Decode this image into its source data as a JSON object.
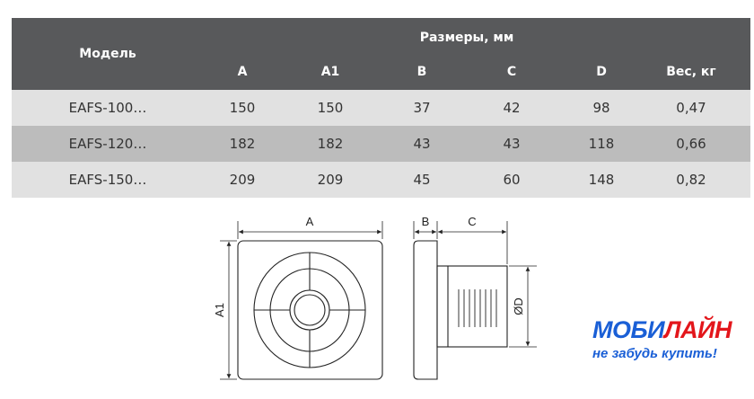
{
  "table": {
    "header": {
      "model": "Модель",
      "group": "Размеры, мм",
      "columns": [
        "A",
        "A1",
        "B",
        "C",
        "D",
        "Вес, кг"
      ]
    },
    "rows": [
      {
        "model": "EAFS-100…",
        "values": [
          "150",
          "150",
          "37",
          "42",
          "98",
          "0,47"
        ]
      },
      {
        "model": "EAFS-120…",
        "values": [
          "182",
          "182",
          "43",
          "43",
          "118",
          "0,66"
        ]
      },
      {
        "model": "EAFS-150…",
        "values": [
          "209",
          "209",
          "45",
          "60",
          "148",
          "0,82"
        ]
      }
    ],
    "colors": {
      "header": "#58595b",
      "row_light": "#e1e1e1",
      "row_dark": "#bcbcbc"
    }
  },
  "drawing": {
    "labels": {
      "a": "A",
      "a1": "A1",
      "b": "B",
      "c": "C",
      "d": "ØD"
    }
  },
  "logo": {
    "brand_blue": "МОБИ",
    "brand_red": "ЛАЙН",
    "slogan": "не забудь купить!",
    "colors": {
      "blue": "#1a5fd6",
      "red": "#e3161b"
    }
  }
}
